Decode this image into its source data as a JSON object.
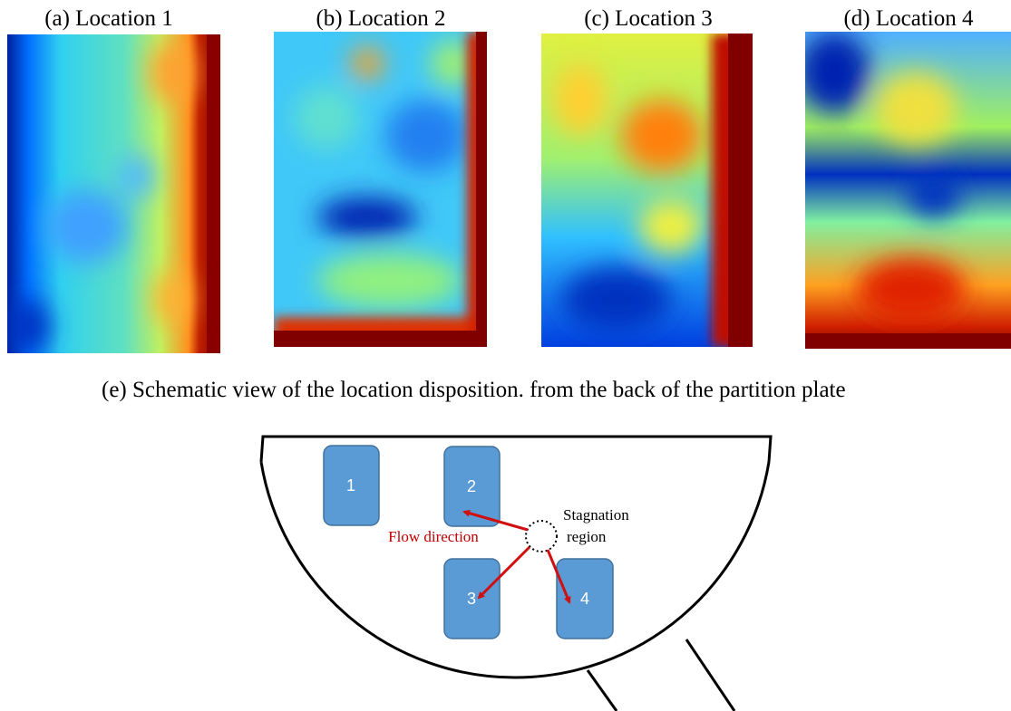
{
  "panels": [
    {
      "caption": "(a)  Location 1"
    },
    {
      "caption": "(b)  Location 2"
    },
    {
      "caption": "(c)  Location 3"
    },
    {
      "caption": "(d)  Location 4"
    }
  ],
  "schematic": {
    "caption": "(e)  Schematic view of the location disposition. from the back of the partition plate",
    "locations": [
      "1",
      "2",
      "3",
      "4"
    ],
    "flow_label": "Flow direction",
    "stagnation_label": [
      "Stagnation",
      "region"
    ]
  }
}
